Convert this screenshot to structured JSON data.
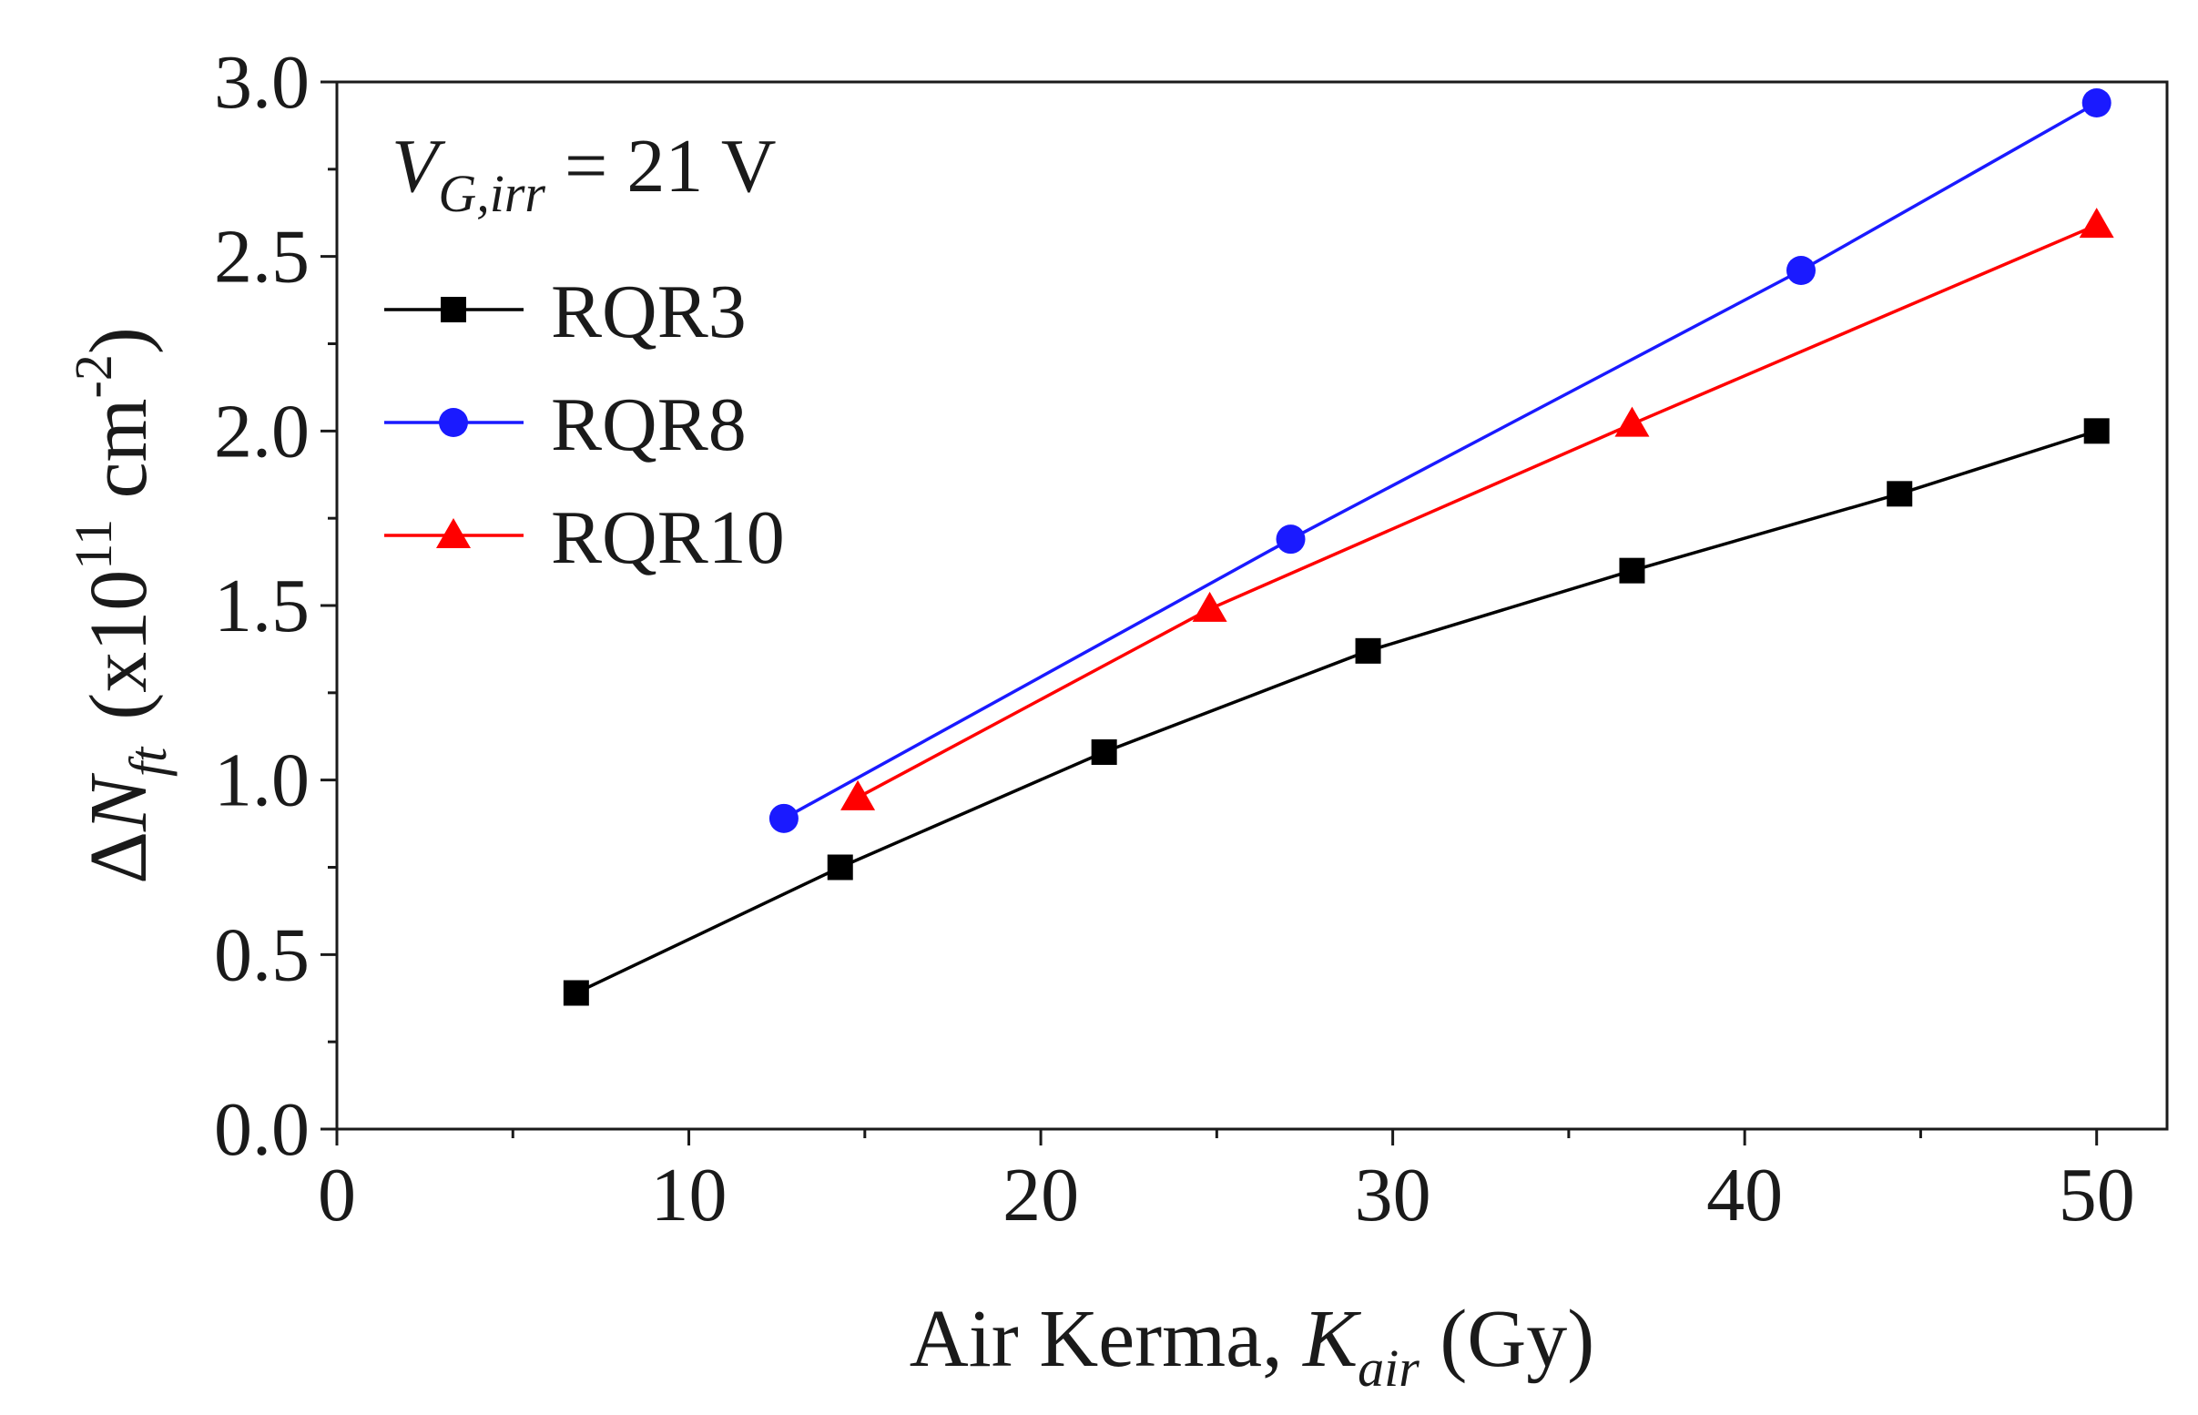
{
  "chart_data": {
    "type": "line",
    "title": "",
    "xlabel": {
      "prefix": "Air Kerma, ",
      "symbol": "K",
      "subscript": "air",
      "suffix": " (Gy)"
    },
    "ylabel": {
      "delta": "Δ",
      "symbol": "N",
      "subscript": "ft",
      "unit_open": "(x10",
      "exponent": "11",
      "unit_mid": " cm",
      "unit_exponent": "-2",
      "unit_close": ")"
    },
    "xlim": [
      0,
      52
    ],
    "ylim": [
      0,
      3.0
    ],
    "xticks": [
      0,
      10,
      20,
      30,
      40,
      50
    ],
    "xtick_labels": [
      "0",
      "10",
      "20",
      "30",
      "40",
      "50"
    ],
    "yticks": [
      0,
      0.5,
      1.0,
      1.5,
      2.0,
      2.5,
      3.0
    ],
    "ytick_labels": [
      "0.0",
      "0.5",
      "1.0",
      "1.5",
      "2.0",
      "2.5",
      "3.0"
    ],
    "grid": false,
    "annotation": {
      "symbol": "V",
      "subscript": "G,irr",
      "text": " = 21 V"
    },
    "legend_position": "top-left",
    "series": [
      {
        "name": "RQR3",
        "color": "#000000",
        "marker": "square",
        "x": [
          6.8,
          14.3,
          21.8,
          29.3,
          36.8,
          44.4,
          50.0
        ],
        "y": [
          0.39,
          0.75,
          1.08,
          1.37,
          1.6,
          1.82,
          2.0
        ]
      },
      {
        "name": "RQR8",
        "color": "#1a1aff",
        "marker": "circle",
        "x": [
          12.7,
          27.1,
          41.6,
          50.0
        ],
        "y": [
          0.89,
          1.69,
          2.46,
          2.94
        ]
      },
      {
        "name": "RQR10",
        "color": "#ff0000",
        "marker": "triangle",
        "x": [
          14.8,
          24.8,
          36.8,
          50.0
        ],
        "y": [
          0.95,
          1.49,
          2.02,
          2.59
        ]
      }
    ]
  }
}
